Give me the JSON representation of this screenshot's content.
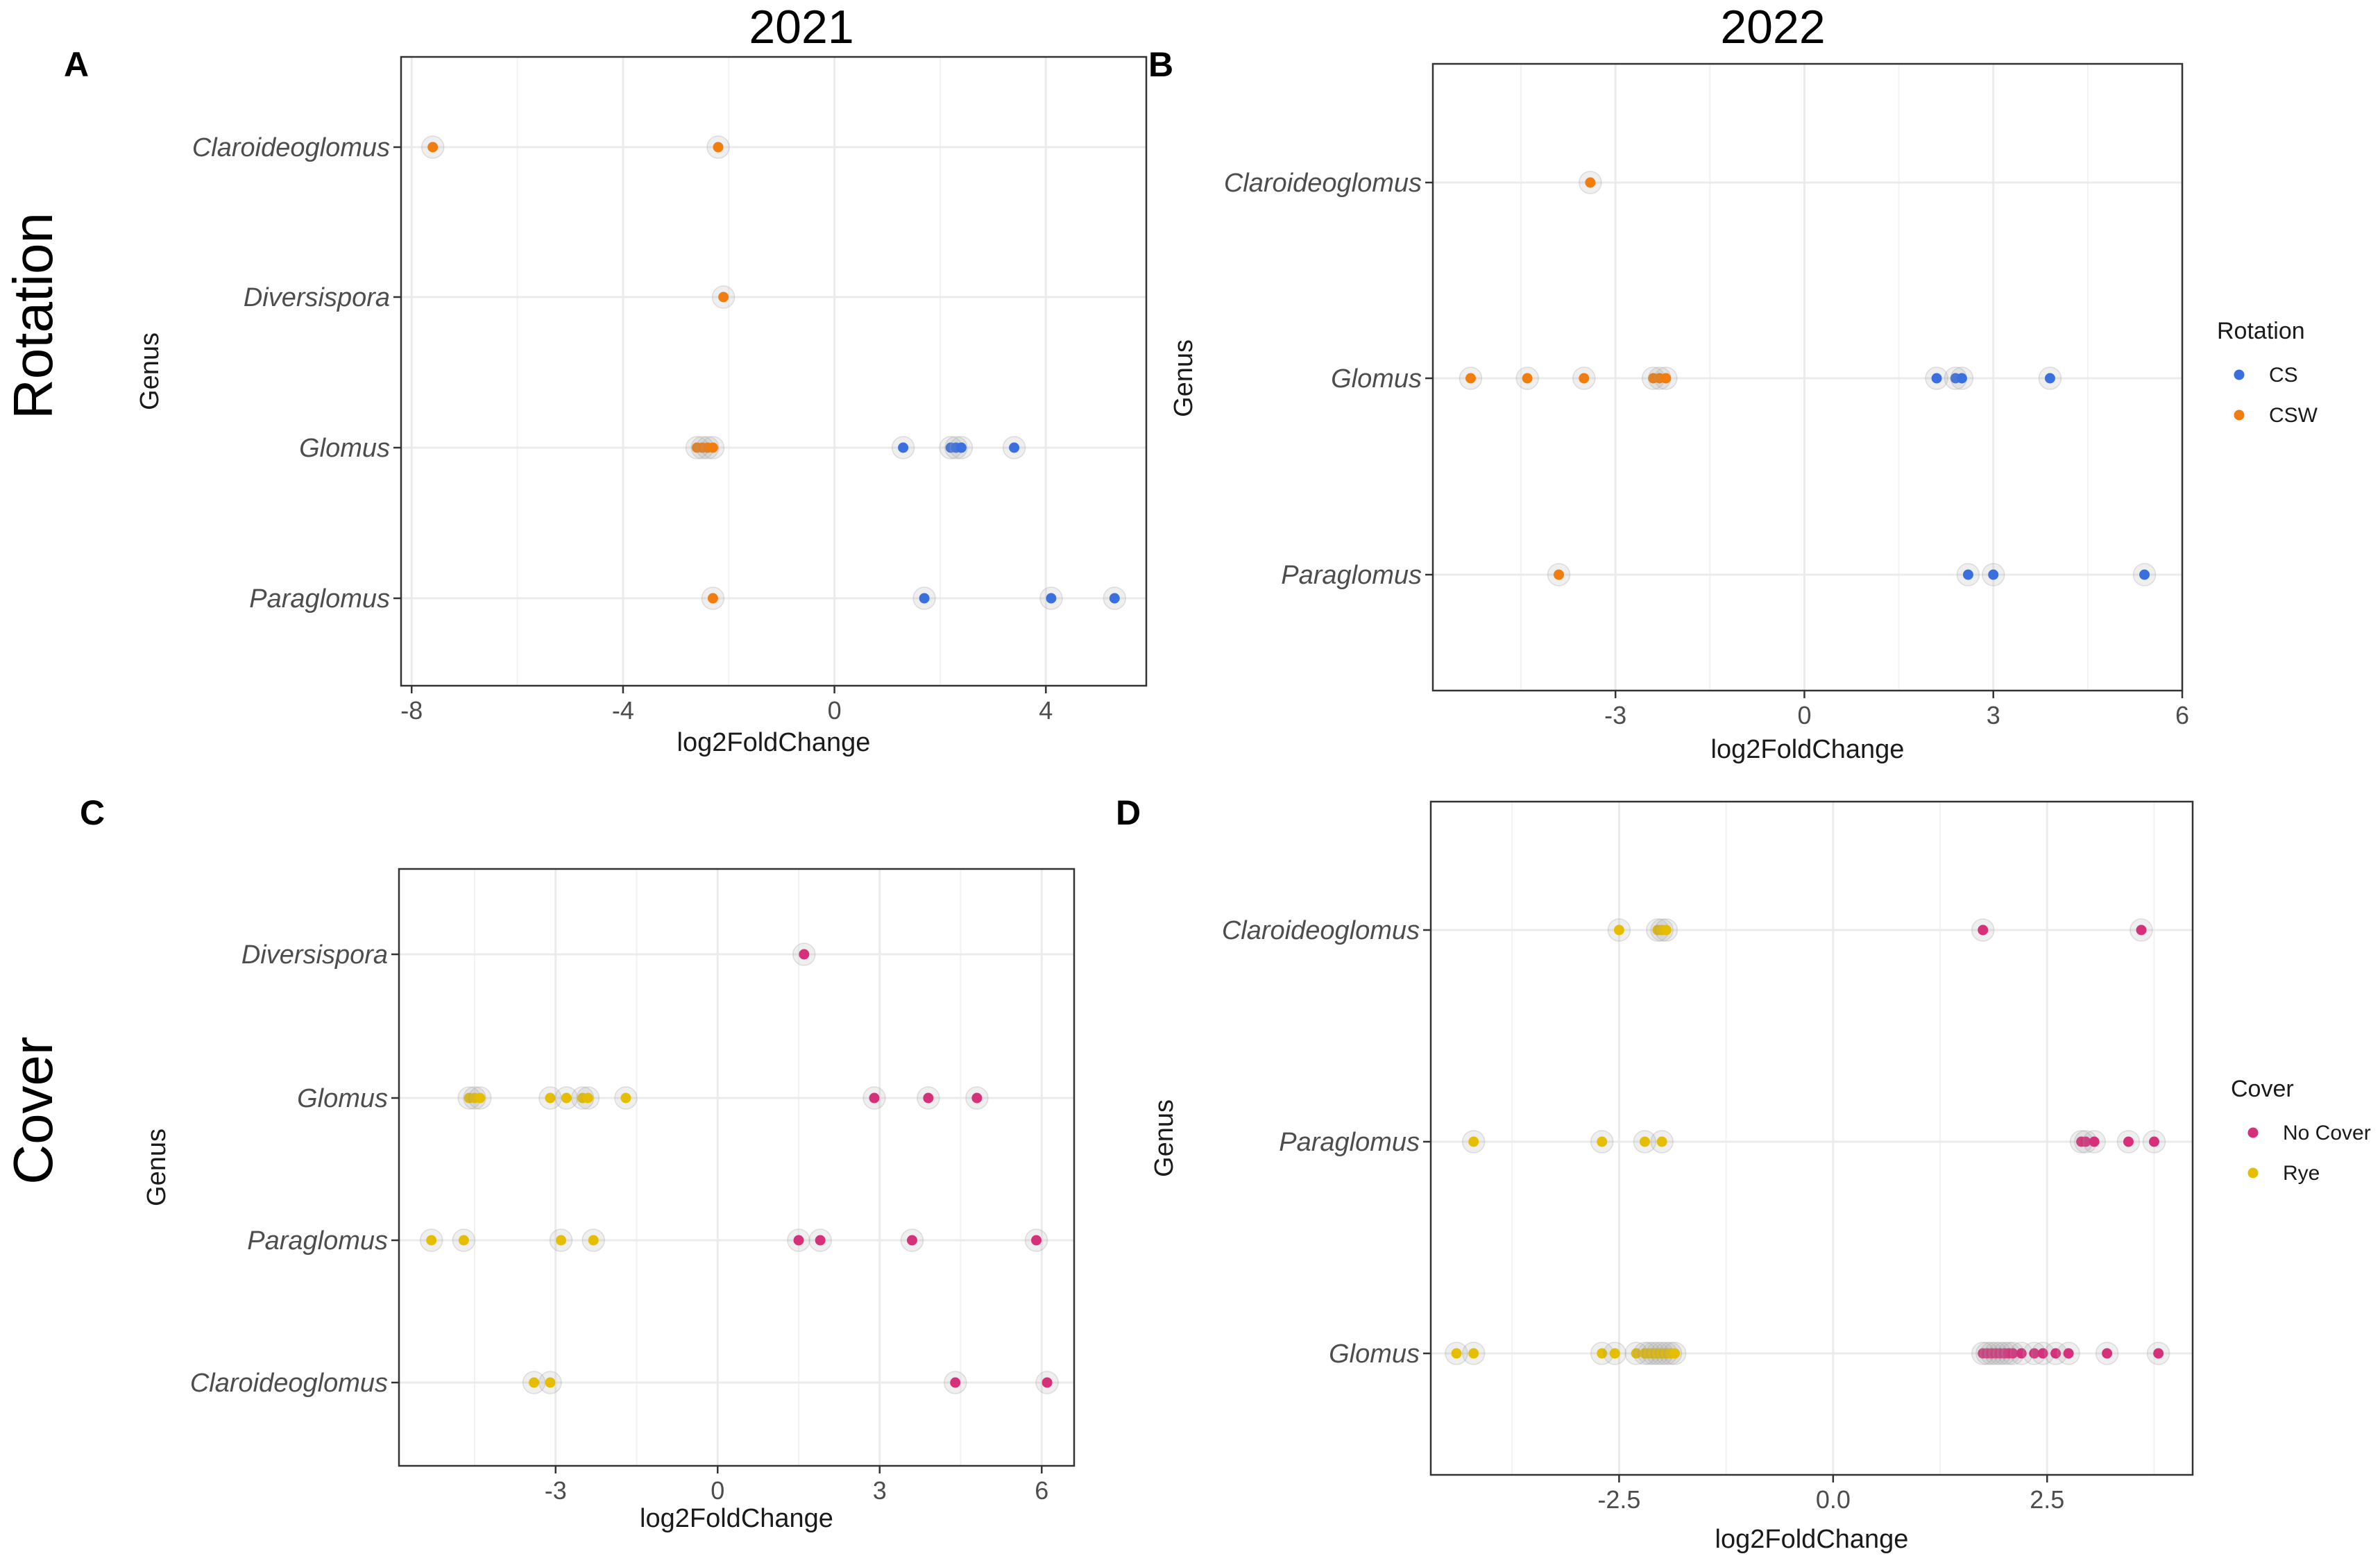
{
  "figure": {
    "column_titles": [
      "2021",
      "2022"
    ],
    "row_titles": [
      "Rotation",
      "Cover"
    ]
  },
  "chart_data": [
    {
      "panel": "A",
      "type": "scatter",
      "xlabel": "log2FoldChange",
      "ylabel": "Genus",
      "xlim": [
        -8.2,
        5.9
      ],
      "xticks": [
        -8,
        -4,
        0,
        4
      ],
      "tick_labels": [
        "-8",
        "-4",
        "0",
        "4"
      ],
      "categories": [
        "Claroideoglomus",
        "Diversispora",
        "Glomus",
        "Paraglomus"
      ],
      "legend": null,
      "series": [
        {
          "name": "CSW",
          "color": "#f07d0e",
          "points": [
            {
              "genus": "Claroideoglomus",
              "x": -7.6
            },
            {
              "genus": "Claroideoglomus",
              "x": -2.2
            },
            {
              "genus": "Diversispora",
              "x": -2.1
            },
            {
              "genus": "Glomus",
              "x": -2.6
            },
            {
              "genus": "Glomus",
              "x": -2.5
            },
            {
              "genus": "Glomus",
              "x": -2.4
            },
            {
              "genus": "Glomus",
              "x": -2.3
            },
            {
              "genus": "Paraglomus",
              "x": -2.3
            }
          ]
        },
        {
          "name": "CS",
          "color": "#3a6fe0",
          "points": [
            {
              "genus": "Glomus",
              "x": 1.3
            },
            {
              "genus": "Glomus",
              "x": 2.2
            },
            {
              "genus": "Glomus",
              "x": 2.3
            },
            {
              "genus": "Glomus",
              "x": 2.4
            },
            {
              "genus": "Glomus",
              "x": 3.4
            },
            {
              "genus": "Paraglomus",
              "x": 1.7
            },
            {
              "genus": "Paraglomus",
              "x": 4.1
            },
            {
              "genus": "Paraglomus",
              "x": 5.3
            }
          ]
        }
      ]
    },
    {
      "panel": "B",
      "type": "scatter",
      "xlabel": "log2FoldChange",
      "ylabel": "Genus",
      "xlim": [
        -5.9,
        6.0
      ],
      "xticks": [
        -3,
        0,
        3,
        6
      ],
      "tick_labels": [
        "-3",
        "0",
        "3",
        "6"
      ],
      "categories": [
        "Claroideoglomus",
        "Glomus",
        "Paraglomus"
      ],
      "legend": {
        "title": "Rotation",
        "entries": [
          {
            "label": "CS",
            "color": "#3a6fe0"
          },
          {
            "label": "CSW",
            "color": "#f07d0e"
          }
        ]
      },
      "series": [
        {
          "name": "CSW",
          "color": "#f07d0e",
          "points": [
            {
              "genus": "Claroideoglomus",
              "x": -3.4
            },
            {
              "genus": "Glomus",
              "x": -5.3
            },
            {
              "genus": "Glomus",
              "x": -4.4
            },
            {
              "genus": "Glomus",
              "x": -3.5
            },
            {
              "genus": "Glomus",
              "x": -2.4
            },
            {
              "genus": "Glomus",
              "x": -2.3
            },
            {
              "genus": "Glomus",
              "x": -2.2
            },
            {
              "genus": "Paraglomus",
              "x": -3.9
            }
          ]
        },
        {
          "name": "CS",
          "color": "#3a6fe0",
          "points": [
            {
              "genus": "Glomus",
              "x": 2.1
            },
            {
              "genus": "Glomus",
              "x": 2.4
            },
            {
              "genus": "Glomus",
              "x": 2.5
            },
            {
              "genus": "Glomus",
              "x": 3.9
            },
            {
              "genus": "Paraglomus",
              "x": 2.6
            },
            {
              "genus": "Paraglomus",
              "x": 3.0
            },
            {
              "genus": "Paraglomus",
              "x": 5.4
            }
          ]
        }
      ]
    },
    {
      "panel": "C",
      "type": "scatter",
      "xlabel": "log2FoldChange",
      "ylabel": "Genus",
      "xlim": [
        -5.9,
        6.6
      ],
      "xticks": [
        -3,
        0,
        3,
        6
      ],
      "tick_labels": [
        "-3",
        "0",
        "3",
        "6"
      ],
      "categories": [
        "Diversispora",
        "Glomus",
        "Paraglomus",
        "Claroideoglomus"
      ],
      "legend": null,
      "series": [
        {
          "name": "Rye",
          "color": "#e6be00",
          "points": [
            {
              "genus": "Glomus",
              "x": -4.6
            },
            {
              "genus": "Glomus",
              "x": -4.5
            },
            {
              "genus": "Glomus",
              "x": -4.4
            },
            {
              "genus": "Glomus",
              "x": -3.1
            },
            {
              "genus": "Glomus",
              "x": -2.8
            },
            {
              "genus": "Glomus",
              "x": -2.5
            },
            {
              "genus": "Glomus",
              "x": -2.4
            },
            {
              "genus": "Glomus",
              "x": -1.7
            },
            {
              "genus": "Paraglomus",
              "x": -5.3
            },
            {
              "genus": "Paraglomus",
              "x": -4.7
            },
            {
              "genus": "Paraglomus",
              "x": -2.9
            },
            {
              "genus": "Paraglomus",
              "x": -2.3
            },
            {
              "genus": "Claroideoglomus",
              "x": -3.4
            },
            {
              "genus": "Claroideoglomus",
              "x": -3.1
            }
          ]
        },
        {
          "name": "No Cover",
          "color": "#d6307a",
          "points": [
            {
              "genus": "Diversispora",
              "x": 1.6
            },
            {
              "genus": "Glomus",
              "x": 2.9
            },
            {
              "genus": "Glomus",
              "x": 3.9
            },
            {
              "genus": "Glomus",
              "x": 4.8
            },
            {
              "genus": "Paraglomus",
              "x": 1.5
            },
            {
              "genus": "Paraglomus",
              "x": 1.9
            },
            {
              "genus": "Paraglomus",
              "x": 3.6
            },
            {
              "genus": "Paraglomus",
              "x": 5.9
            },
            {
              "genus": "Claroideoglomus",
              "x": 4.4
            },
            {
              "genus": "Claroideoglomus",
              "x": 6.1
            }
          ]
        }
      ]
    },
    {
      "panel": "D",
      "type": "scatter",
      "xlabel": "log2FoldChange",
      "ylabel": "Genus",
      "xlim": [
        -4.7,
        4.2
      ],
      "xticks": [
        -2.5,
        0.0,
        2.5
      ],
      "tick_labels": [
        "-2.5",
        "0.0",
        "2.5"
      ],
      "categories": [
        "Claroideoglomus",
        "Paraglomus",
        "Glomus"
      ],
      "legend": {
        "title": "Cover",
        "entries": [
          {
            "label": "No Cover",
            "color": "#d6307a"
          },
          {
            "label": "Rye",
            "color": "#e6be00"
          }
        ]
      },
      "series": [
        {
          "name": "Rye",
          "color": "#e6be00",
          "points": [
            {
              "genus": "Claroideoglomus",
              "x": -2.5
            },
            {
              "genus": "Claroideoglomus",
              "x": -2.05
            },
            {
              "genus": "Claroideoglomus",
              "x": -2.0
            },
            {
              "genus": "Claroideoglomus",
              "x": -1.95
            },
            {
              "genus": "Paraglomus",
              "x": -4.2
            },
            {
              "genus": "Paraglomus",
              "x": -2.7
            },
            {
              "genus": "Paraglomus",
              "x": -2.2
            },
            {
              "genus": "Paraglomus",
              "x": -2.0
            },
            {
              "genus": "Glomus",
              "x": -4.4
            },
            {
              "genus": "Glomus",
              "x": -4.2
            },
            {
              "genus": "Glomus",
              "x": -2.7
            },
            {
              "genus": "Glomus",
              "x": -2.55
            },
            {
              "genus": "Glomus",
              "x": -2.3
            },
            {
              "genus": "Glomus",
              "x": -2.2
            },
            {
              "genus": "Glomus",
              "x": -2.15
            },
            {
              "genus": "Glomus",
              "x": -2.1
            },
            {
              "genus": "Glomus",
              "x": -2.05
            },
            {
              "genus": "Glomus",
              "x": -2.0
            },
            {
              "genus": "Glomus",
              "x": -1.95
            },
            {
              "genus": "Glomus",
              "x": -1.9
            },
            {
              "genus": "Glomus",
              "x": -1.85
            }
          ]
        },
        {
          "name": "No Cover",
          "color": "#d6307a",
          "points": [
            {
              "genus": "Claroideoglomus",
              "x": 1.75
            },
            {
              "genus": "Claroideoglomus",
              "x": 3.6
            },
            {
              "genus": "Paraglomus",
              "x": 2.9
            },
            {
              "genus": "Paraglomus",
              "x": 2.95
            },
            {
              "genus": "Paraglomus",
              "x": 3.05
            },
            {
              "genus": "Paraglomus",
              "x": 3.45
            },
            {
              "genus": "Paraglomus",
              "x": 3.75
            },
            {
              "genus": "Glomus",
              "x": 1.75
            },
            {
              "genus": "Glomus",
              "x": 1.8
            },
            {
              "genus": "Glomus",
              "x": 1.85
            },
            {
              "genus": "Glomus",
              "x": 1.9
            },
            {
              "genus": "Glomus",
              "x": 1.95
            },
            {
              "genus": "Glomus",
              "x": 2.0
            },
            {
              "genus": "Glomus",
              "x": 2.05
            },
            {
              "genus": "Glomus",
              "x": 2.1
            },
            {
              "genus": "Glomus",
              "x": 2.2
            },
            {
              "genus": "Glomus",
              "x": 2.35
            },
            {
              "genus": "Glomus",
              "x": 2.45
            },
            {
              "genus": "Glomus",
              "x": 2.6
            },
            {
              "genus": "Glomus",
              "x": 2.75
            },
            {
              "genus": "Glomus",
              "x": 3.2
            },
            {
              "genus": "Glomus",
              "x": 3.8
            }
          ]
        }
      ]
    }
  ]
}
